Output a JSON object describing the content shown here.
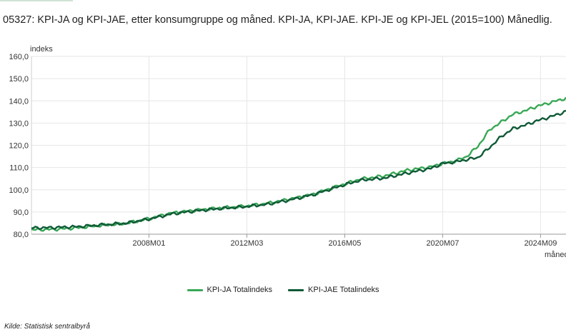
{
  "page": {
    "title": "05327: KPI-JA og KPI-JAE, etter konsumgruppe og måned. KPI-JA, KPI-JAE. KPI-JE og KPI-JEL (2015=100) Månedlig.",
    "source": "Kilde:  Statistisk sentralbyrå"
  },
  "chart_data": {
    "type": "line",
    "title": "",
    "ylabel": "indeks",
    "xlabel": "måned",
    "ylim": [
      80,
      160
    ],
    "yticks": [
      80,
      90,
      100,
      110,
      120,
      130,
      140,
      150,
      160
    ],
    "ytick_labels": [
      "80,0",
      "90,0",
      "100,0",
      "110,0",
      "120,0",
      "130,0",
      "140,0",
      "150,0",
      "160,0"
    ],
    "x_start": "2003M01",
    "x_end": "2025M10",
    "xticks": [
      "2008M01",
      "2012M03",
      "2016M05",
      "2020M07",
      "2024M09"
    ],
    "grid": true,
    "legend_position": "bottom",
    "series": [
      {
        "name": "KPI-JA Totalindeks",
        "color": "#3aa856",
        "points": [
          [
            "2003M01",
            82.0
          ],
          [
            "2004M01",
            82.2
          ],
          [
            "2005M01",
            82.9
          ],
          [
            "2006M01",
            84.0
          ],
          [
            "2007M01",
            84.8
          ],
          [
            "2008M01",
            87.0
          ],
          [
            "2009M01",
            89.6
          ],
          [
            "2010M01",
            90.8
          ],
          [
            "2011M01",
            91.8
          ],
          [
            "2012M01",
            92.5
          ],
          [
            "2013M01",
            93.8
          ],
          [
            "2014M01",
            95.8
          ],
          [
            "2015M01",
            98.0
          ],
          [
            "2016M01",
            101.5
          ],
          [
            "2017M01",
            104.8
          ],
          [
            "2018M01",
            106.2
          ],
          [
            "2019M01",
            108.8
          ],
          [
            "2020M01",
            110.3
          ],
          [
            "2020M07",
            111.8
          ],
          [
            "2021M01",
            112.8
          ],
          [
            "2021M07",
            114.8
          ],
          [
            "2022M01",
            119.5
          ],
          [
            "2022M07",
            127.0
          ],
          [
            "2023M01",
            130.5
          ],
          [
            "2023M07",
            134.0
          ],
          [
            "2024M01",
            135.5
          ],
          [
            "2024M07",
            137.5
          ],
          [
            "2025M01",
            139.0
          ],
          [
            "2025M10",
            141.2
          ]
        ]
      },
      {
        "name": "KPI-JAE Totalindeks",
        "color": "#0f5a37",
        "points": [
          [
            "2003M01",
            82.8
          ],
          [
            "2004M01",
            83.0
          ],
          [
            "2005M01",
            83.4
          ],
          [
            "2006M01",
            84.2
          ],
          [
            "2007M01",
            84.9
          ],
          [
            "2008M01",
            86.8
          ],
          [
            "2009M01",
            89.2
          ],
          [
            "2010M01",
            90.5
          ],
          [
            "2011M01",
            91.5
          ],
          [
            "2012M01",
            92.3
          ],
          [
            "2013M01",
            93.4
          ],
          [
            "2014M01",
            95.4
          ],
          [
            "2015M01",
            97.8
          ],
          [
            "2016M01",
            101.2
          ],
          [
            "2017M01",
            104.3
          ],
          [
            "2018M01",
            105.2
          ],
          [
            "2019M01",
            107.5
          ],
          [
            "2020M01",
            109.6
          ],
          [
            "2020M07",
            111.8
          ],
          [
            "2021M01",
            112.5
          ],
          [
            "2021M07",
            113.5
          ],
          [
            "2022M01",
            114.5
          ],
          [
            "2022M07",
            119.0
          ],
          [
            "2023M01",
            124.0
          ],
          [
            "2023M07",
            127.5
          ],
          [
            "2024M01",
            129.0
          ],
          [
            "2024M07",
            131.0
          ],
          [
            "2025M01",
            132.5
          ],
          [
            "2025M10",
            135.2
          ]
        ]
      }
    ]
  }
}
